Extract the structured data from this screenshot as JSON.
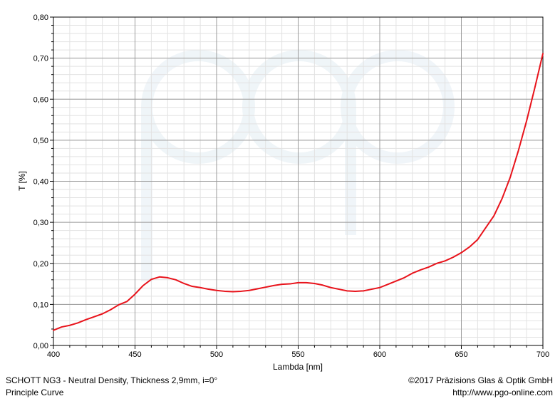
{
  "chart_data": {
    "type": "line",
    "xlabel": "Lambda [nm]",
    "ylabel": "T [%]",
    "xlim": [
      400,
      700
    ],
    "ylim": [
      0,
      0.8
    ],
    "x_ticks": [
      "400",
      "450",
      "500",
      "550",
      "600",
      "650",
      "700"
    ],
    "y_ticks": [
      "0,00",
      "0,10",
      "0,20",
      "0,30",
      "0,40",
      "0,50",
      "0,60",
      "0,70",
      "0,80"
    ],
    "grid": true,
    "series": [
      {
        "color": "#e8131b",
        "x": [
          400,
          405,
          410,
          415,
          420,
          425,
          430,
          435,
          440,
          445,
          450,
          455,
          460,
          465,
          470,
          475,
          480,
          485,
          490,
          495,
          500,
          505,
          510,
          515,
          520,
          525,
          530,
          535,
          540,
          545,
          550,
          555,
          560,
          565,
          570,
          575,
          580,
          585,
          590,
          595,
          600,
          605,
          610,
          615,
          620,
          625,
          630,
          635,
          640,
          645,
          650,
          655,
          660,
          665,
          670,
          675,
          680,
          685,
          690,
          695,
          700
        ],
        "y": [
          0.037,
          0.045,
          0.049,
          0.055,
          0.063,
          0.07,
          0.077,
          0.087,
          0.099,
          0.107,
          0.125,
          0.146,
          0.161,
          0.167,
          0.165,
          0.16,
          0.151,
          0.144,
          0.141,
          0.137,
          0.134,
          0.132,
          0.131,
          0.132,
          0.134,
          0.138,
          0.142,
          0.146,
          0.149,
          0.15,
          0.153,
          0.153,
          0.151,
          0.147,
          0.141,
          0.137,
          0.133,
          0.132,
          0.133,
          0.137,
          0.141,
          0.149,
          0.157,
          0.165,
          0.176,
          0.184,
          0.191,
          0.2,
          0.206,
          0.215,
          0.226,
          0.24,
          0.258,
          0.287,
          0.316,
          0.358,
          0.41,
          0.475,
          0.547,
          0.627,
          0.711
        ]
      }
    ],
    "watermark": "pgo"
  },
  "footer": {
    "left_line1": "SCHOTT NG3 - Neutral Density, Thickness 2,9mm, i=0°",
    "left_line2": "Principle Curve",
    "right_line1": "©2017 Präzisions Glas & Optik GmbH",
    "right_line2": "http://www.pgo-online.com"
  }
}
